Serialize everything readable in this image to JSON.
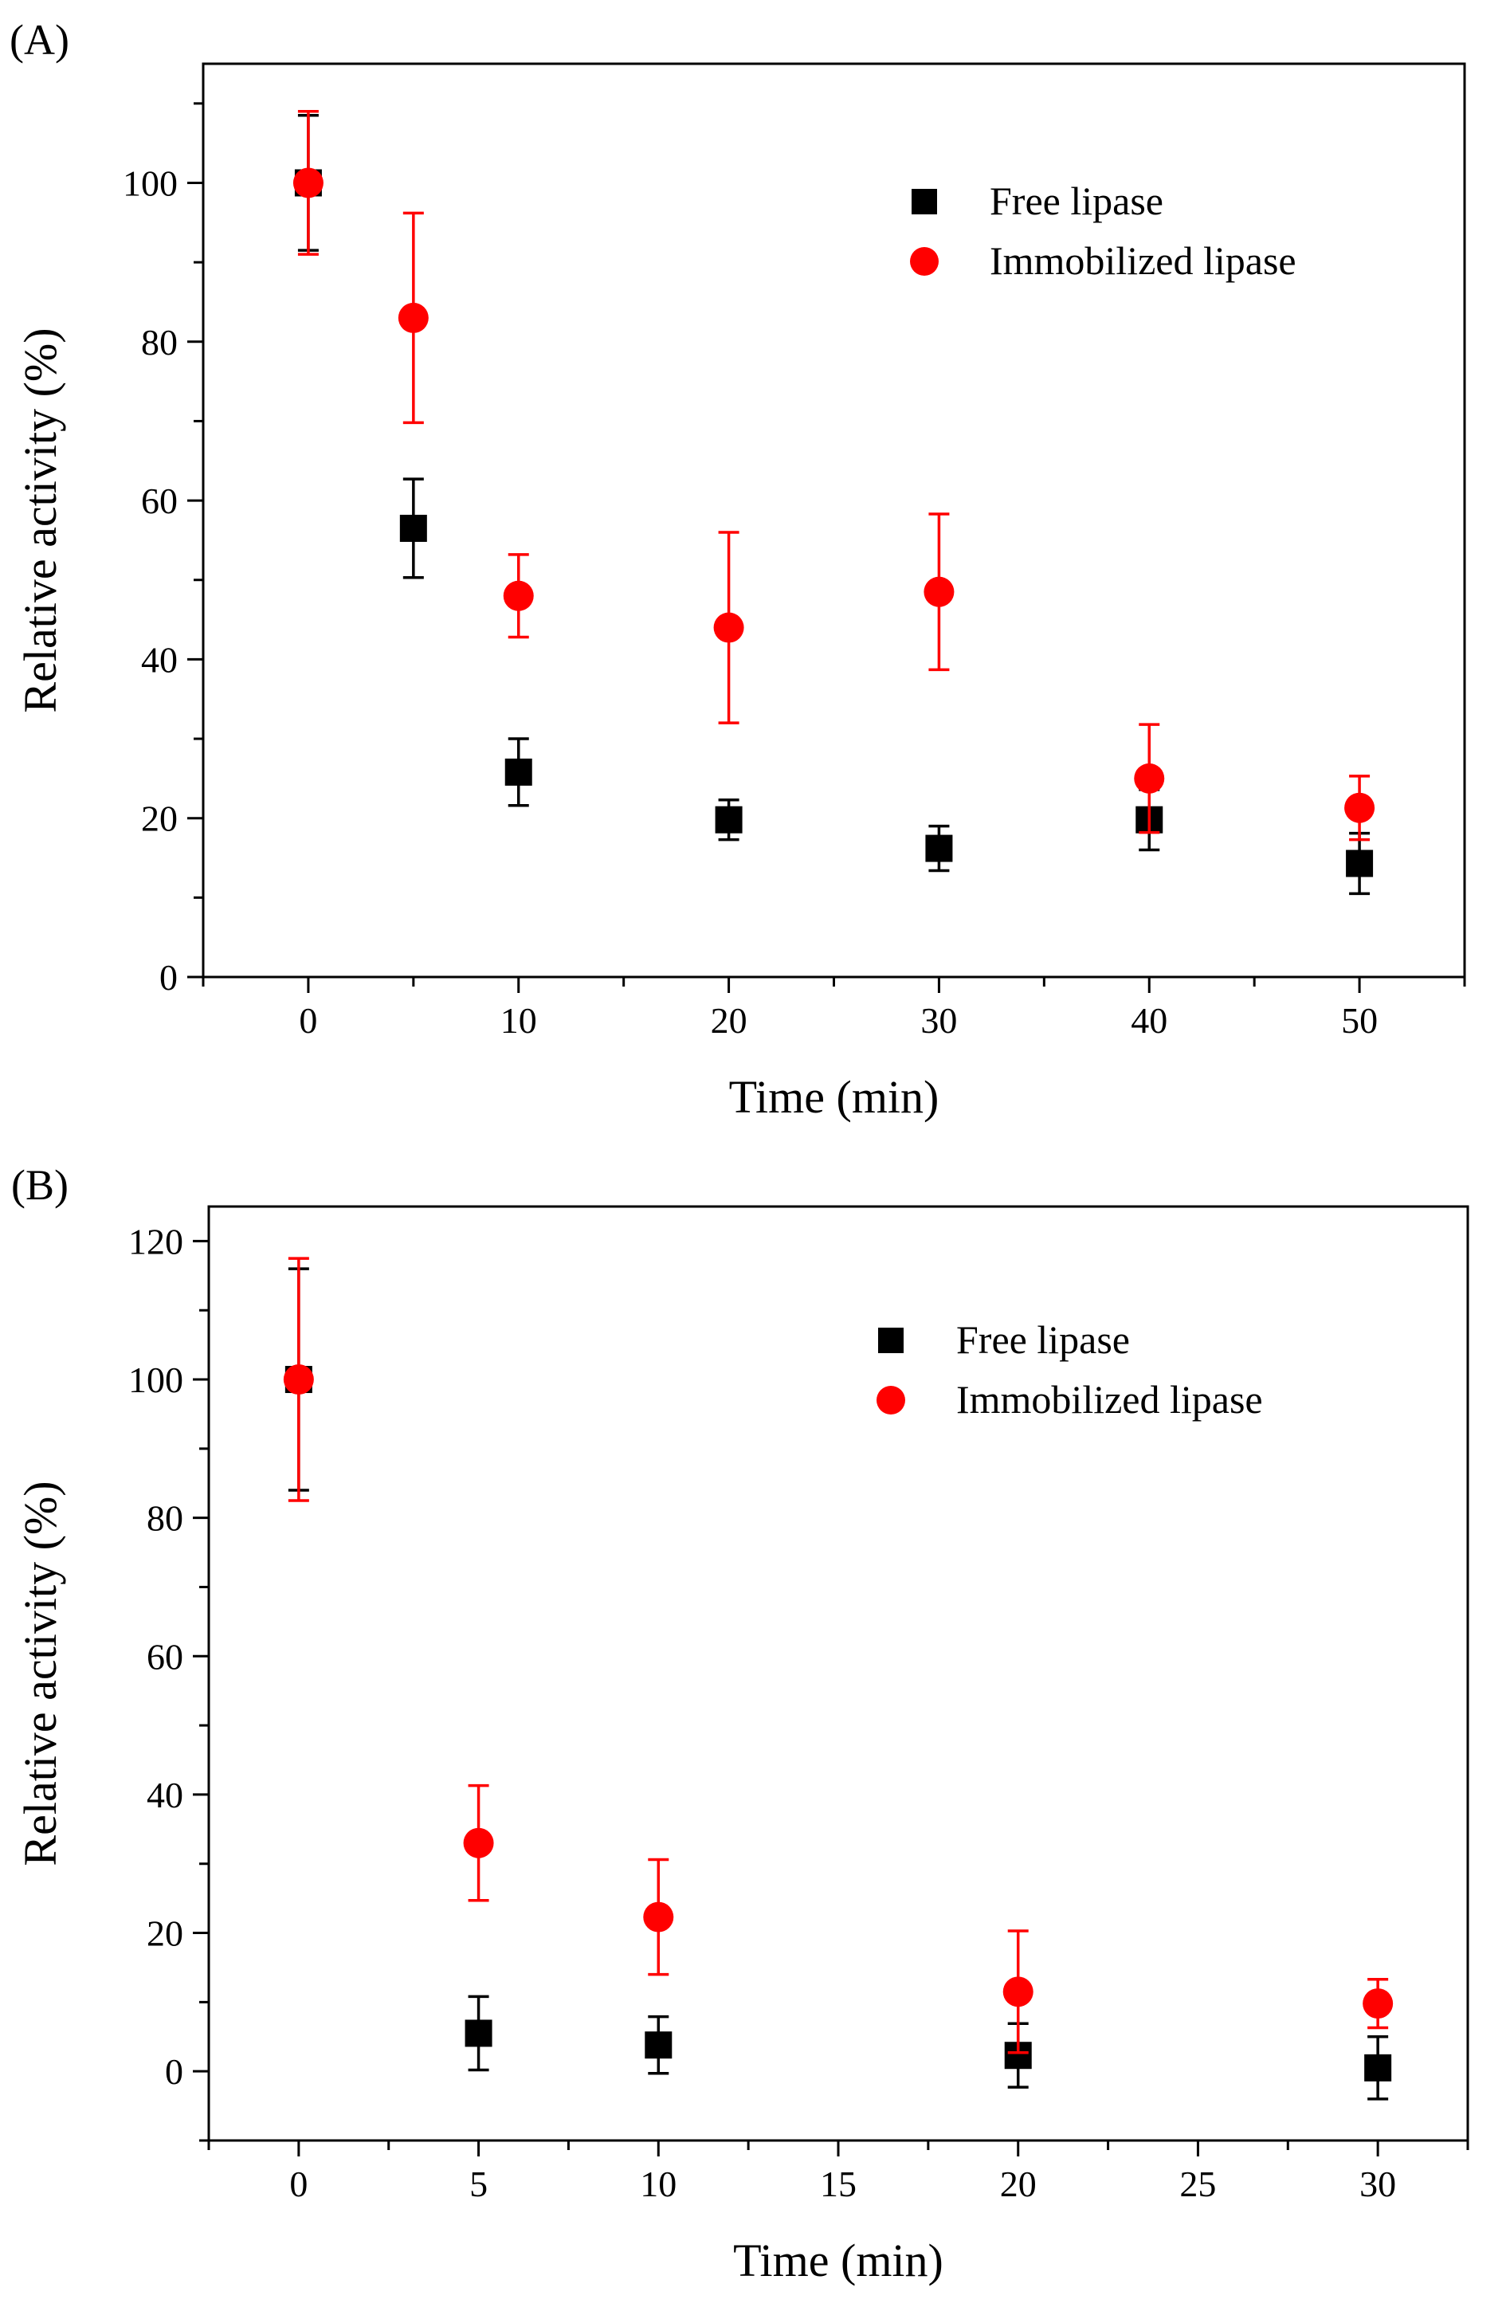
{
  "chart_data": [
    {
      "panel_label": "(A)",
      "type": "scatter",
      "title": "",
      "xlabel": "Time (min)",
      "ylabel": "Relative activity (%)",
      "xlim": [
        -5,
        55
      ],
      "ylim": [
        0,
        115
      ],
      "xticks": [
        0,
        10,
        20,
        30,
        40,
        50
      ],
      "yticks": [
        0,
        20,
        40,
        60,
        80,
        100
      ],
      "legend_position": "top-right",
      "series": [
        {
          "name": "Free lipase",
          "marker": "square",
          "color": "#000000",
          "x": [
            0,
            5,
            10,
            20,
            30,
            40,
            50
          ],
          "y": [
            100,
            56.5,
            25.8,
            19.8,
            16.2,
            19.8,
            14.3
          ],
          "err": [
            8.5,
            6.2,
            4.2,
            2.5,
            2.8,
            3.8,
            3.8
          ]
        },
        {
          "name": "Immobilized lipase",
          "marker": "circle",
          "color": "#ff0000",
          "x": [
            0,
            5,
            10,
            20,
            30,
            40,
            50
          ],
          "y": [
            100,
            83,
            48,
            44,
            48.5,
            25,
            21.3
          ],
          "err": [
            9,
            13.2,
            5.2,
            12,
            9.8,
            6.8,
            4
          ]
        }
      ]
    },
    {
      "panel_label": "(B)",
      "type": "scatter",
      "title": "",
      "xlabel": "Time (min)",
      "ylabel": "Relative activity (%)",
      "xlim": [
        -2.5,
        32.5
      ],
      "ylim": [
        -10,
        125
      ],
      "xticks": [
        0,
        5,
        10,
        15,
        20,
        25,
        30
      ],
      "yticks": [
        0,
        20,
        40,
        60,
        80,
        100,
        120
      ],
      "legend_position": "top-right",
      "series": [
        {
          "name": "Free lipase",
          "marker": "square",
          "color": "#000000",
          "x": [
            0,
            5,
            10,
            20,
            30
          ],
          "y": [
            100,
            5.5,
            3.8,
            2.3,
            0.5
          ],
          "err": [
            16,
            5.3,
            4.1,
            4.6,
            4.5
          ]
        },
        {
          "name": "Immobilized lipase",
          "marker": "circle",
          "color": "#ff0000",
          "x": [
            0,
            5,
            10,
            20,
            30
          ],
          "y": [
            100,
            33,
            22.3,
            11.5,
            9.8
          ],
          "err": [
            17.5,
            8.3,
            8.3,
            8.8,
            3.5
          ]
        }
      ]
    }
  ]
}
